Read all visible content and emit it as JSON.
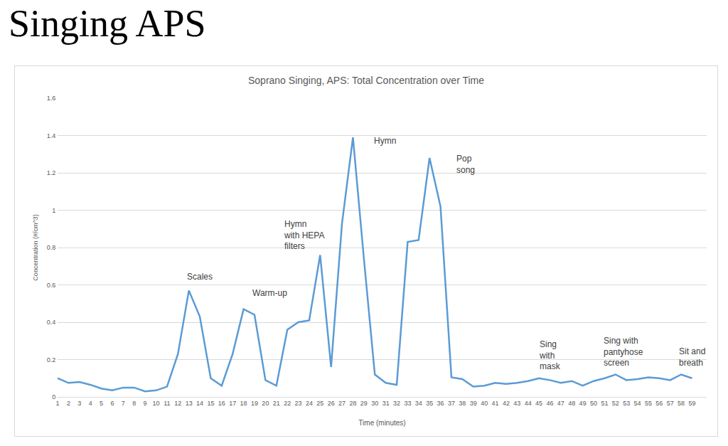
{
  "heading": "Singing APS",
  "chart_data": {
    "type": "line",
    "title": "Soprano Singing, APS: Total Concentration over Time",
    "x_label": "Time (minutes)",
    "y_label": "Concentration (#/cm^3)",
    "categories": [
      "1",
      "2",
      "3",
      "4",
      "5",
      "6",
      "7",
      "8",
      "9",
      "10",
      "11",
      "12",
      "13",
      "14",
      "15",
      "16",
      "17",
      "18",
      "19",
      "20",
      "21",
      "22",
      "23",
      "24",
      "25",
      "26",
      "27",
      "28",
      "29",
      "30",
      "31",
      "32",
      "33",
      "34",
      "35",
      "36",
      "37",
      "38",
      "39",
      "40",
      "41",
      "42",
      "43",
      "44",
      "45",
      "46",
      "47",
      "48",
      "49",
      "50",
      "51",
      "52",
      "53",
      "54",
      "55",
      "56",
      "57",
      "58",
      "59"
    ],
    "values": [
      0.1,
      0.075,
      0.08,
      0.065,
      0.045,
      0.035,
      0.05,
      0.05,
      0.03,
      0.035,
      0.055,
      0.23,
      0.57,
      0.43,
      0.1,
      0.06,
      0.23,
      0.47,
      0.44,
      0.09,
      0.06,
      0.36,
      0.4,
      0.41,
      0.76,
      0.16,
      0.93,
      1.39,
      0.74,
      0.12,
      0.075,
      0.065,
      0.83,
      0.84,
      1.28,
      1.02,
      0.105,
      0.095,
      0.055,
      0.06,
      0.075,
      0.07,
      0.075,
      0.085,
      0.1,
      0.09,
      0.075,
      0.085,
      0.06,
      0.085,
      0.1,
      0.12,
      0.09,
      0.095,
      0.105,
      0.1,
      0.09,
      0.12,
      0.1
    ],
    "color": "#5b9bd5",
    "ylim": [
      0,
      1.6
    ],
    "yticks": [
      0,
      0.2,
      0.4,
      0.6,
      0.8,
      1,
      1.2,
      1.4,
      1.6
    ],
    "grid": true,
    "annotations": [
      {
        "text": "Scales",
        "x": "13"
      },
      {
        "text": "Warm-up",
        "x": "18"
      },
      {
        "text": "Hymn\nwith HEPA\nfilters",
        "x": "25"
      },
      {
        "text": "Hymn",
        "x": "28"
      },
      {
        "text": "Pop\nsong",
        "x": "35"
      },
      {
        "text": "Sing\nwith\nmask",
        "x": "45"
      },
      {
        "text": "Sing with\npantyhose\nscreen",
        "x": "52"
      },
      {
        "text": "Sit and\nbreath",
        "x": "58"
      }
    ]
  }
}
